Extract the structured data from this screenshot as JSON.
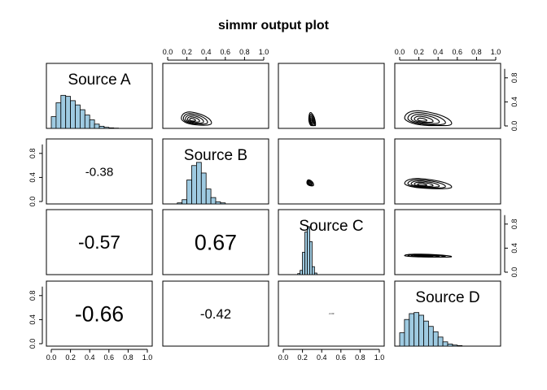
{
  "chart_data": {
    "type": "pairs",
    "title": "simmr output plot",
    "variables": [
      "Source A",
      "Source B",
      "Source C",
      "Source D"
    ],
    "axis_range": [
      0,
      1
    ],
    "x_ticks": [
      "0.0",
      "0.2",
      "0.4",
      "0.6",
      "0.8",
      "1.0"
    ],
    "y_ticks": [
      "0.0",
      "0.4",
      "0.8"
    ],
    "histogram_color": "#9ecae1",
    "histograms": [
      {
        "variable": "Source A",
        "bin_width": 0.05,
        "bin_start": 0.0,
        "counts": [
          0.22,
          0.48,
          0.62,
          0.6,
          0.52,
          0.44,
          0.35,
          0.25,
          0.16,
          0.08,
          0.04,
          0.02,
          0.01,
          0.005
        ]
      },
      {
        "variable": "Source B",
        "bin_width": 0.05,
        "bin_start": 0.0,
        "counts": [
          0.0,
          0.0,
          0.02,
          0.08,
          0.45,
          0.72,
          0.78,
          0.58,
          0.28,
          0.12,
          0.04,
          0.02
        ]
      },
      {
        "variable": "Source C",
        "bin_width": 0.025,
        "bin_start": 0.15,
        "counts": [
          0.02,
          0.08,
          0.42,
          0.8,
          0.9,
          0.62,
          0.15,
          0.03
        ]
      },
      {
        "variable": "Source D",
        "bin_width": 0.05,
        "bin_start": 0.0,
        "counts": [
          0.25,
          0.5,
          0.61,
          0.63,
          0.58,
          0.47,
          0.37,
          0.27,
          0.17,
          0.08,
          0.04,
          0.02,
          0.01
        ]
      }
    ],
    "correlations": [
      {
        "row": 2,
        "col": 1,
        "value": "-0.38"
      },
      {
        "row": 3,
        "col": 1,
        "value": "-0.57"
      },
      {
        "row": 3,
        "col": 2,
        "value": "0.67"
      },
      {
        "row": 4,
        "col": 1,
        "value": "-0.66"
      },
      {
        "row": 4,
        "col": 2,
        "value": "-0.42"
      },
      {
        "row": 4,
        "col": 3,
        "value": "-0.03"
      }
    ],
    "contours": [
      {
        "row": 1,
        "col": 2,
        "center": [
          0.25,
          0.1
        ],
        "spread": [
          0.18,
          0.13
        ],
        "levels": 5
      },
      {
        "row": 1,
        "col": 3,
        "center": [
          0.29,
          0.08
        ],
        "spread": [
          0.04,
          0.14
        ],
        "levels": 5
      },
      {
        "row": 1,
        "col": 4,
        "center": [
          0.22,
          0.1
        ],
        "spread": [
          0.28,
          0.15
        ],
        "levels": 5
      },
      {
        "row": 2,
        "col": 3,
        "center": [
          0.27,
          0.3
        ],
        "spread": [
          0.04,
          0.06
        ],
        "levels": 4
      },
      {
        "row": 2,
        "col": 4,
        "center": [
          0.22,
          0.28
        ],
        "spread": [
          0.28,
          0.1
        ],
        "levels": 5
      },
      {
        "row": 3,
        "col": 4,
        "center": [
          0.22,
          0.27
        ],
        "spread": [
          0.28,
          0.03
        ],
        "levels": 5
      }
    ]
  }
}
